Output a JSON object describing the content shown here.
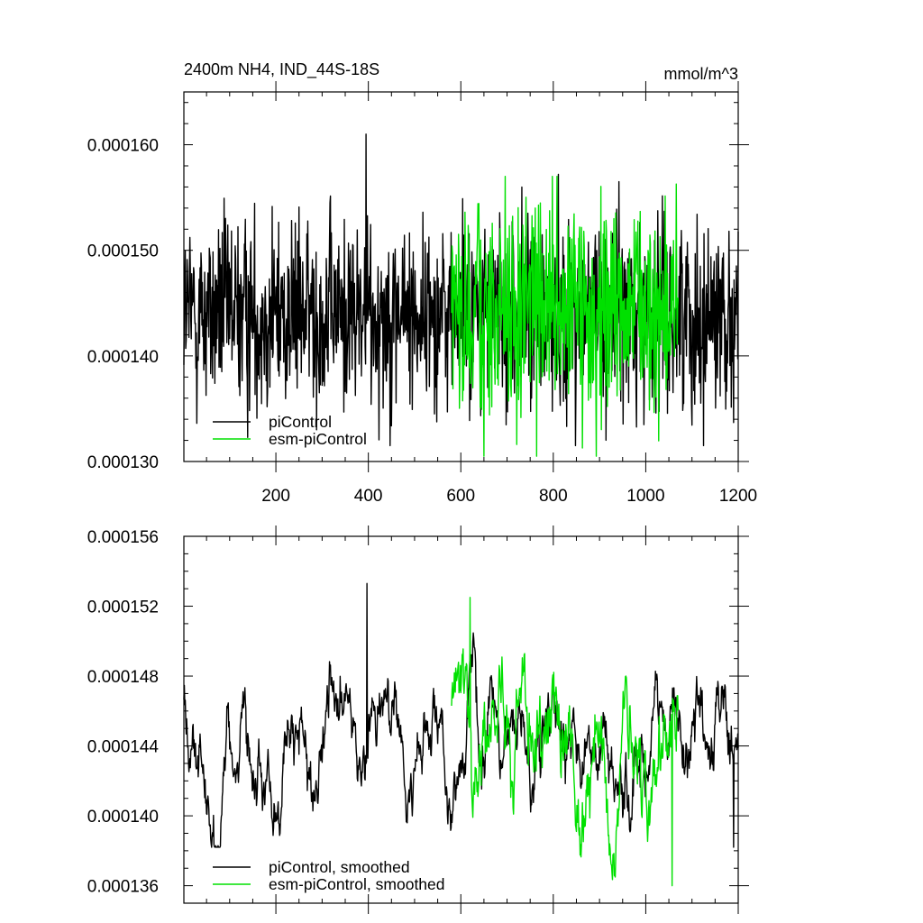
{
  "chart_data": [
    {
      "type": "line",
      "title": "2400m NH4, IND_44S-18S",
      "units": "mmol/m^3",
      "xlim": [
        1,
        1200
      ],
      "ylim": [
        0.00013,
        0.000165
      ],
      "x_ticks": [
        200,
        400,
        600,
        800,
        1000,
        1200
      ],
      "x_tick_labels": [
        "200",
        "400",
        "600",
        "800",
        "1000",
        "1200"
      ],
      "y_ticks": [
        0.00013,
        0.00014,
        0.00015,
        0.00016
      ],
      "y_tick_labels": [
        "0.000130",
        "0.000140",
        "0.000150",
        "0.000160"
      ],
      "grid": false,
      "legend_position": "bottom-left",
      "series": [
        {
          "name": "piControl",
          "color": "#000000",
          "x_start": 1,
          "x_end": 1200,
          "mean": 0.000144,
          "std": 4.5e-06,
          "max": 0.000161,
          "min": 0.0001315,
          "extremes": [
            {
              "x": 395,
              "y": 0.000161
            },
            {
              "x": 1125,
              "y": 0.0001315
            }
          ]
        },
        {
          "name": "esm-piControl",
          "color": "#00e000",
          "x_start": 580,
          "x_end": 1070,
          "mean": 0.000144,
          "std": 5e-06,
          "max": 0.000157,
          "min": 0.0001305,
          "extremes": [
            {
              "x": 808,
              "y": 0.000157
            },
            {
              "x": 893,
              "y": 0.0001305
            }
          ]
        }
      ]
    },
    {
      "type": "line",
      "title": "",
      "xlim": [
        1,
        1200
      ],
      "ylim": [
        0.000135,
        0.000156
      ],
      "y_ticks": [
        0.000136,
        0.00014,
        0.000144,
        0.000148,
        0.000152,
        0.000156
      ],
      "y_tick_labels": [
        "0.000136",
        "0.000140",
        "0.000144",
        "0.000148",
        "0.000152",
        "0.000156"
      ],
      "grid": false,
      "legend_position": "bottom-left",
      "series": [
        {
          "name": "piControl, smoothed",
          "color": "#000000",
          "x_start": 1,
          "x_end": 1200,
          "mean": 0.000144,
          "std": 2.2e-06,
          "max": 0.0001533,
          "min": 0.0001382,
          "extremes": [
            {
              "x": 397,
              "y": 0.0001533
            },
            {
              "x": 1190,
              "y": 0.0001382
            }
          ]
        },
        {
          "name": "esm-piControl, smoothed",
          "color": "#00e000",
          "x_start": 580,
          "x_end": 1070,
          "mean": 0.000144,
          "std": 2.7e-06,
          "max": 0.0001525,
          "min": 0.000136,
          "extremes": [
            {
              "x": 620,
              "y": 0.0001525
            },
            {
              "x": 1057,
              "y": 0.000136
            }
          ]
        }
      ]
    }
  ]
}
